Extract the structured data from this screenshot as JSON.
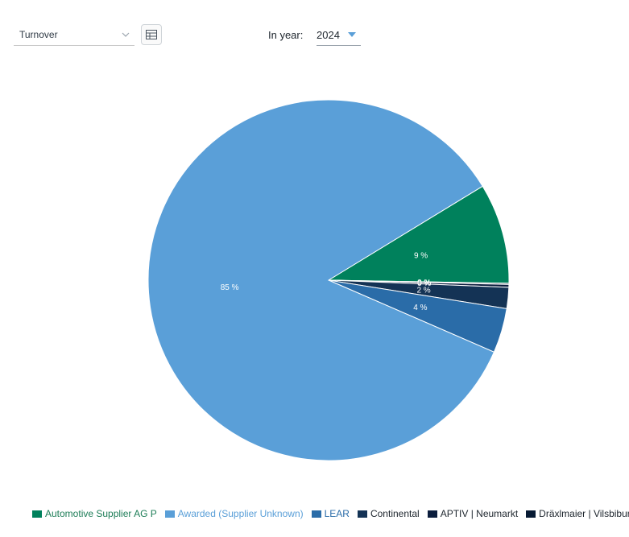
{
  "controls": {
    "metric_value": "Turnover",
    "year_label": "In year:",
    "year_value": "2024",
    "chevron_icon": "chevron-down-icon",
    "table_icon": "table-icon",
    "caret_icon": "caret-down-icon",
    "accent_color": "#5a9fd8"
  },
  "chart_data": {
    "type": "pie",
    "title": "",
    "slices": [
      {
        "name": "Automotive Supplier AG P",
        "value": 9,
        "label": "9 %",
        "color": "#00815c",
        "text_color": "#1d7d57"
      },
      {
        "name": "Dräxlmaier | Vilsbiburg",
        "value": 0.1,
        "label": "0 %",
        "color": "#071a33",
        "text_color": "#1d252d"
      },
      {
        "name": "APTIV | Neumarkt",
        "value": 0.25,
        "label": "0 %",
        "color": "#0b1d3d",
        "text_color": "#1d252d"
      },
      {
        "name": "Continental",
        "value": 1.9,
        "label": "2 %",
        "color": "#143355",
        "text_color": "#1d252d"
      },
      {
        "name": "LEAR",
        "value": 4.0,
        "label": "4 %",
        "color": "#2a6ca8",
        "text_color": "#2a6ca8"
      },
      {
        "name": "Awarded (Supplier Unknown)",
        "value": 84.75,
        "label": "85 %",
        "color": "#5a9fd8",
        "text_color": "#5a9fd8"
      }
    ],
    "legend_order": [
      "Automotive Supplier AG P",
      "Awarded (Supplier Unknown)",
      "LEAR",
      "Continental",
      "APTIV | Neumarkt",
      "Dräxlmaier | Vilsbiburg"
    ],
    "legend_position": "bottom"
  }
}
